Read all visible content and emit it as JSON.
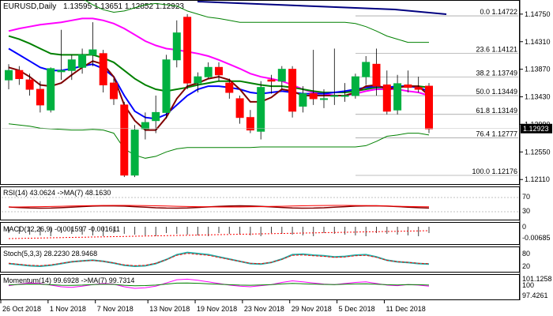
{
  "chart_data": {
    "type": "candlestick",
    "symbol": "EURUSD",
    "timeframe": "Daily",
    "ohlc_header": [
      "1.13595",
      "1.13651",
      "1.12852",
      "1.12923"
    ],
    "price_axis": {
      "ylim": [
        1.1205,
        1.1495
      ],
      "ticks": [
        "1.14750",
        "1.14310",
        "1.13870",
        "1.13430",
        "1.12990",
        "1.12550",
        "1.12110"
      ],
      "current_price": "1.12923"
    },
    "dates": [
      "26 Oct 2018",
      "1 Nov 2018",
      "7 Nov 2018",
      "13 Nov 2018",
      "19 Nov 2018",
      "23 Nov 2018",
      "29 Nov 2018",
      "5 Dec 2018",
      "11 Dec 2018"
    ],
    "fibonacci": [
      {
        "label": "0.0",
        "value": "1.14722"
      },
      {
        "label": "23.6",
        "value": "1.14121"
      },
      {
        "label": "38.2",
        "value": "1.13749"
      },
      {
        "label": "50.0",
        "value": "1.13449"
      },
      {
        "label": "61.8",
        "value": "1.13149"
      },
      {
        "label": "76.4",
        "value": "1.12777"
      },
      {
        "label": "100.0",
        "value": "1.12176"
      }
    ],
    "candles": [
      {
        "o": 1.137,
        "h": 1.1395,
        "l": 1.1355,
        "c": 1.1385
      },
      {
        "o": 1.1385,
        "h": 1.1392,
        "l": 1.1362,
        "c": 1.1372
      },
      {
        "o": 1.137,
        "h": 1.138,
        "l": 1.1345,
        "c": 1.1355
      },
      {
        "o": 1.1355,
        "h": 1.1368,
        "l": 1.1318,
        "c": 1.133
      },
      {
        "o": 1.1322,
        "h": 1.139,
        "l": 1.1318,
        "c": 1.1388
      },
      {
        "o": 1.1383,
        "h": 1.145,
        "l": 1.137,
        "c": 1.1385
      },
      {
        "o": 1.1385,
        "h": 1.141,
        "l": 1.137,
        "c": 1.1402
      },
      {
        "o": 1.139,
        "h": 1.142,
        "l": 1.138,
        "c": 1.141
      },
      {
        "o": 1.141,
        "h": 1.1462,
        "l": 1.1392,
        "c": 1.1418
      },
      {
        "o": 1.1412,
        "h": 1.1418,
        "l": 1.135,
        "c": 1.1362
      },
      {
        "o": 1.1365,
        "h": 1.1372,
        "l": 1.133,
        "c": 1.134
      },
      {
        "o": 1.133,
        "h": 1.1335,
        "l": 1.1215,
        "c": 1.1218
      },
      {
        "o": 1.1218,
        "h": 1.1298,
        "l": 1.1215,
        "c": 1.129
      },
      {
        "o": 1.1292,
        "h": 1.1318,
        "l": 1.1275,
        "c": 1.1302
      },
      {
        "o": 1.1305,
        "h": 1.1345,
        "l": 1.1285,
        "c": 1.1318
      },
      {
        "o": 1.1318,
        "h": 1.141,
        "l": 1.1308,
        "c": 1.1402
      },
      {
        "o": 1.1402,
        "h": 1.1465,
        "l": 1.139,
        "c": 1.1445
      },
      {
        "o": 1.147,
        "h": 1.1475,
        "l": 1.1355,
        "c": 1.1365
      },
      {
        "o": 1.1365,
        "h": 1.1382,
        "l": 1.135,
        "c": 1.1375
      },
      {
        "o": 1.1375,
        "h": 1.1398,
        "l": 1.1372,
        "c": 1.139
      },
      {
        "o": 1.139,
        "h": 1.1398,
        "l": 1.1368,
        "c": 1.1378
      },
      {
        "o": 1.1365,
        "h": 1.1372,
        "l": 1.134,
        "c": 1.135
      },
      {
        "o": 1.134,
        "h": 1.1345,
        "l": 1.13,
        "c": 1.131
      },
      {
        "o": 1.131,
        "h": 1.1322,
        "l": 1.1285,
        "c": 1.129
      },
      {
        "o": 1.1288,
        "h": 1.1368,
        "l": 1.1275,
        "c": 1.1358
      },
      {
        "o": 1.137,
        "h": 1.1378,
        "l": 1.1348,
        "c": 1.1368
      },
      {
        "o": 1.1368,
        "h": 1.1392,
        "l": 1.1355,
        "c": 1.1387
      },
      {
        "o": 1.1387,
        "h": 1.1392,
        "l": 1.131,
        "c": 1.132
      },
      {
        "o": 1.1328,
        "h": 1.136,
        "l": 1.1318,
        "c": 1.1348
      },
      {
        "o": 1.1348,
        "h": 1.1418,
        "l": 1.133,
        "c": 1.134
      },
      {
        "o": 1.134,
        "h": 1.1355,
        "l": 1.1325,
        "c": 1.134
      },
      {
        "o": 1.1345,
        "h": 1.142,
        "l": 1.133,
        "c": 1.1345
      },
      {
        "o": 1.1345,
        "h": 1.1365,
        "l": 1.1335,
        "c": 1.1345
      },
      {
        "o": 1.1345,
        "h": 1.138,
        "l": 1.134,
        "c": 1.1375
      },
      {
        "o": 1.1375,
        "h": 1.1408,
        "l": 1.1362,
        "c": 1.1398
      },
      {
        "o": 1.1395,
        "h": 1.142,
        "l": 1.1345,
        "c": 1.136
      },
      {
        "o": 1.1362,
        "h": 1.1385,
        "l": 1.1315,
        "c": 1.132
      },
      {
        "o": 1.1322,
        "h": 1.1378,
        "l": 1.1315,
        "c": 1.1364
      },
      {
        "o": 1.1362,
        "h": 1.1385,
        "l": 1.135,
        "c": 1.1358
      },
      {
        "o": 1.1358,
        "h": 1.1375,
        "l": 1.135,
        "c": 1.1355
      },
      {
        "o": 1.136,
        "h": 1.1365,
        "l": 1.1285,
        "c": 1.1292
      }
    ],
    "bollinger": {
      "upper": [
        1.156,
        1.1555,
        1.1548,
        1.154,
        1.1532,
        1.1522,
        1.151,
        1.15,
        1.149,
        1.1482,
        1.1478,
        1.148,
        1.1485,
        1.149,
        1.1492,
        1.149,
        1.1488,
        1.148,
        1.1475,
        1.147,
        1.1468,
        1.1465,
        1.1462,
        1.1462,
        1.1462,
        1.1462,
        1.1462,
        1.1462,
        1.1462,
        1.1462,
        1.1462,
        1.1462,
        1.1462,
        1.146,
        1.1455,
        1.1448,
        1.144,
        1.1435,
        1.143,
        1.143,
        1.143
      ],
      "lower": [
        1.13,
        1.1298,
        1.1296,
        1.1293,
        1.1292,
        1.1291,
        1.129,
        1.129,
        1.1291,
        1.129,
        1.1285,
        1.126,
        1.125,
        1.1245,
        1.1248,
        1.1255,
        1.126,
        1.1262,
        1.1262,
        1.1262,
        1.1262,
        1.1262,
        1.1262,
        1.1262,
        1.1263,
        1.1263,
        1.1263,
        1.1263,
        1.1263,
        1.1263,
        1.1263,
        1.1263,
        1.1263,
        1.1263,
        1.1265,
        1.1272,
        1.128,
        1.1282,
        1.1285,
        1.1285,
        1.1282
      ]
    },
    "ma_navy": [
      1.142,
      1.141,
      1.14,
      1.139,
      1.1385,
      1.1385,
      1.1388,
      1.1392,
      1.1395,
      1.1388,
      1.1375,
      1.1345,
      1.132,
      1.131,
      1.1308,
      1.1315,
      1.133,
      1.1345,
      1.1355,
      1.136,
      1.136,
      1.1358,
      1.1355,
      1.135,
      1.1348,
      1.135,
      1.1352,
      1.135,
      1.1348,
      1.1348,
      1.1348,
      1.135,
      1.1352,
      1.1355,
      1.1358,
      1.136,
      1.1358,
      1.136,
      1.136,
      1.1358,
      1.1352
    ],
    "ma_red": [
      1.139,
      1.1385,
      1.1375,
      1.1362,
      1.136,
      1.1365,
      1.1378,
      1.139,
      1.14,
      1.1395,
      1.1375,
      1.133,
      1.1305,
      1.129,
      1.129,
      1.131,
      1.134,
      1.136,
      1.1365,
      1.1372,
      1.1375,
      1.137,
      1.1355,
      1.1335,
      1.1335,
      1.1342,
      1.1355,
      1.1352,
      1.1345,
      1.1345,
      1.1345,
      1.1345,
      1.1345,
      1.135,
      1.136,
      1.1362,
      1.1355,
      1.1358,
      1.136,
      1.136,
      1.1345
    ],
    "ma_green": [
      1.144,
      1.1435,
      1.1428,
      1.142,
      1.1412,
      1.141,
      1.141,
      1.141,
      1.141,
      1.1405,
      1.1398,
      1.1385,
      1.1372,
      1.1362,
      1.1355,
      1.1352,
      1.1355,
      1.1358,
      1.1362,
      1.1365,
      1.1368,
      1.1368,
      1.1368,
      1.1365,
      1.1362,
      1.136,
      1.136,
      1.1358,
      1.1355,
      1.1352,
      1.135,
      1.135,
      1.135,
      1.1352,
      1.1355,
      1.1358,
      1.1358,
      1.136,
      1.136,
      1.136,
      1.1358
    ],
    "ma_magenta": [
      1.1448,
      1.1452,
      1.1455,
      1.1458,
      1.146,
      1.1462,
      1.1465,
      1.1468,
      1.1468,
      1.1465,
      1.146,
      1.1452,
      1.1442,
      1.1432,
      1.1425,
      1.142,
      1.1418,
      1.1415,
      1.1412,
      1.1408,
      1.1402,
      1.1395,
      1.1388,
      1.138,
      1.1375,
      1.1372,
      1.1368,
      1.1362,
      1.1355,
      1.135,
      1.1348,
      1.1345,
      1.1345,
      1.1348,
      1.1352,
      1.1355,
      1.1355,
      1.1355,
      1.1352,
      1.135,
      1.1345
    ],
    "rsi": {
      "label": "RSI(14) 43.0624 ->MA(7) 48.1630",
      "ticks": [
        "70",
        "30"
      ]
    },
    "macd": {
      "label": "MACD(12,26,9) -0.001597 -0.001611",
      "ticks": [
        "0",
        "-0.00685"
      ]
    },
    "stoch": {
      "label": "Stoch(5,3,3) 28.2230 28.9468",
      "ticks": [
        "80",
        "20"
      ]
    },
    "momentum": {
      "label": "Momentum(14) 99.6928 ->MA(7) 99.7314",
      "ticks": [
        "101.1258",
        "100",
        "97.4261"
      ]
    },
    "colors": {
      "bull": "#00b140",
      "bear": "#ff0000",
      "band": "#008000",
      "ma_navy": "#000080",
      "ma_red": "#800000",
      "ma_green": "#008000",
      "ma_magenta": "#ff00ff",
      "ma_blue": "#0000ff",
      "fib_line": "#808080"
    }
  }
}
